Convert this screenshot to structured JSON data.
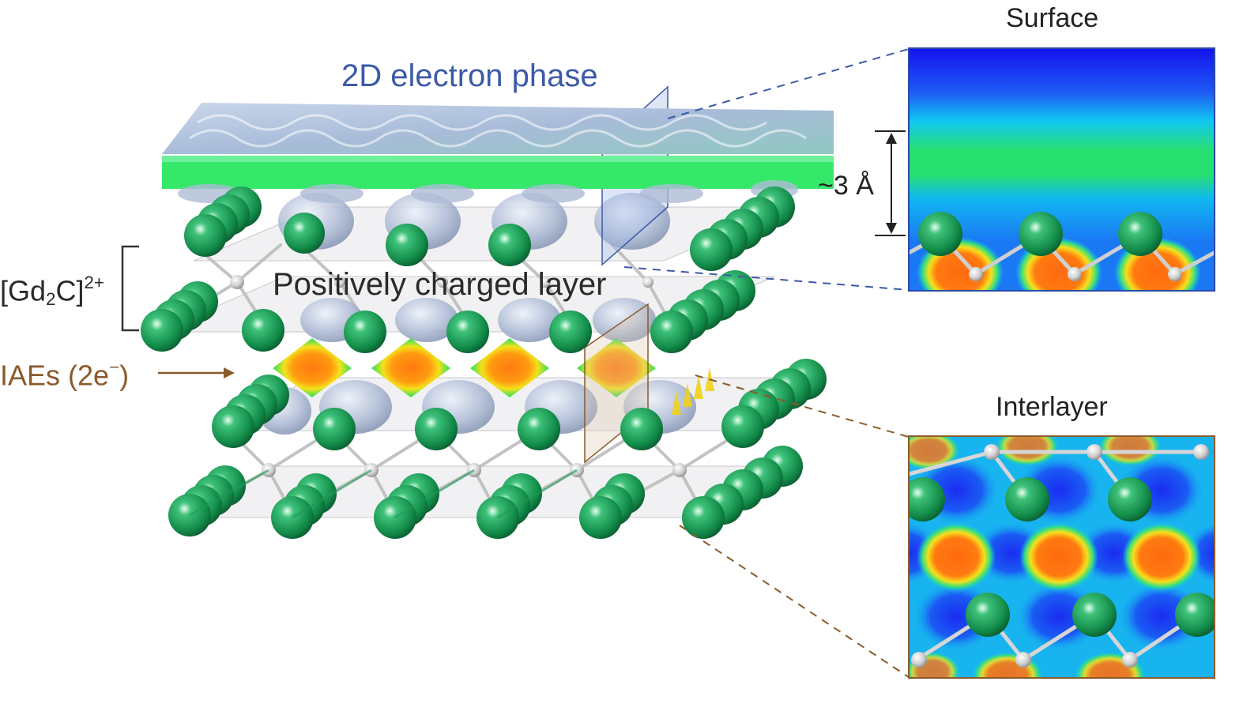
{
  "labels": {
    "phase": "2D electron phase",
    "positive_layer": "Positively charged layer",
    "formula_main": "[Gd",
    "formula_sub": "2",
    "formula_mid": "C]",
    "formula_sup": "2+",
    "iae_main": "IAEs (2e",
    "iae_sup": "−",
    "iae_end": ")",
    "distance": "~3 Å",
    "surface_title": "Surface",
    "interlayer_title": "Interlayer"
  },
  "colors": {
    "phase_text": "#3d5aa8",
    "iae_text": "#8b5a2b",
    "gd_atom": "#1f9a57",
    "carbon_atom": "#d9d9d9",
    "electron_sheet": "#35e86a",
    "surface_frame": "#2b4aa8",
    "interlayer_frame": "#8b5a2b",
    "density_low": "#1436f0",
    "density_high": "#ff6a12"
  }
}
